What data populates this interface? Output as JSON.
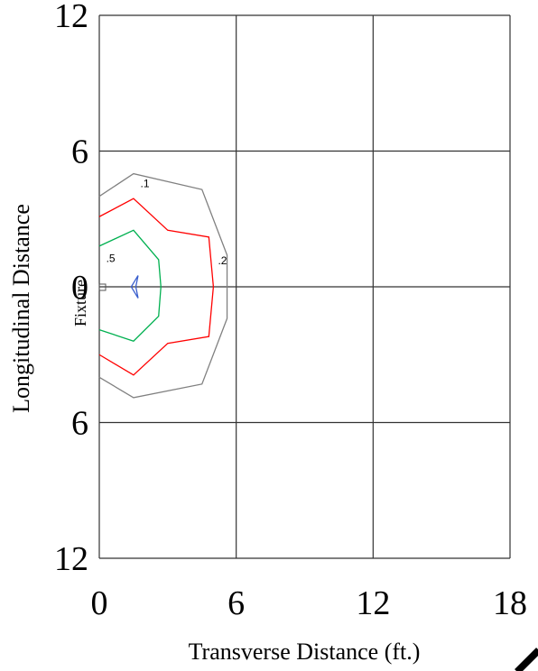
{
  "chart_data": {
    "type": "contour",
    "title": "",
    "xlabel": "Transverse Distance (ft.)",
    "ylabel": "Longitudinal Distance",
    "x_ticks": [
      "0",
      "6",
      "12",
      "18"
    ],
    "y_ticks": [
      "12",
      "6",
      "0",
      "6",
      "12"
    ],
    "xlim": [
      0,
      18
    ],
    "ylim": [
      -12,
      12
    ],
    "grid": true,
    "fixture_label": "Fixture",
    "fixture_position": [
      0,
      0
    ],
    "contours": [
      {
        "level": ".1",
        "color": "#808080",
        "label_at": [
          1.8,
          4.4
        ],
        "points": [
          [
            0,
            4.0
          ],
          [
            1.5,
            5.0
          ],
          [
            4.5,
            4.3
          ],
          [
            5.6,
            1.4
          ],
          [
            5.6,
            -1.4
          ],
          [
            4.5,
            -4.3
          ],
          [
            1.5,
            -4.9
          ],
          [
            0,
            -4.0
          ]
        ]
      },
      {
        "level": ".2",
        "color": "#ff0000",
        "label_at": [
          5.2,
          1.0
        ],
        "points": [
          [
            0,
            3.1
          ],
          [
            1.5,
            3.9
          ],
          [
            3.0,
            2.5
          ],
          [
            4.8,
            2.2
          ],
          [
            5.0,
            0
          ],
          [
            4.8,
            -2.2
          ],
          [
            3.0,
            -2.5
          ],
          [
            1.5,
            -3.9
          ],
          [
            0,
            -3.0
          ]
        ]
      },
      {
        "level": ".5",
        "color": "#00b050",
        "label_at": [
          0.3,
          1.1
        ],
        "points": [
          [
            0,
            1.8
          ],
          [
            1.5,
            2.5
          ],
          [
            2.6,
            1.2
          ],
          [
            2.7,
            0
          ],
          [
            2.6,
            -1.3
          ],
          [
            1.5,
            -2.4
          ],
          [
            0,
            -1.9
          ]
        ]
      },
      {
        "level": "",
        "color": "#3a5fcd",
        "label_at": null,
        "points": [
          [
            1.7,
            0.5
          ],
          [
            1.4,
            0
          ],
          [
            1.7,
            -0.5
          ],
          [
            1.6,
            0
          ],
          [
            1.7,
            0.5
          ]
        ]
      }
    ]
  }
}
